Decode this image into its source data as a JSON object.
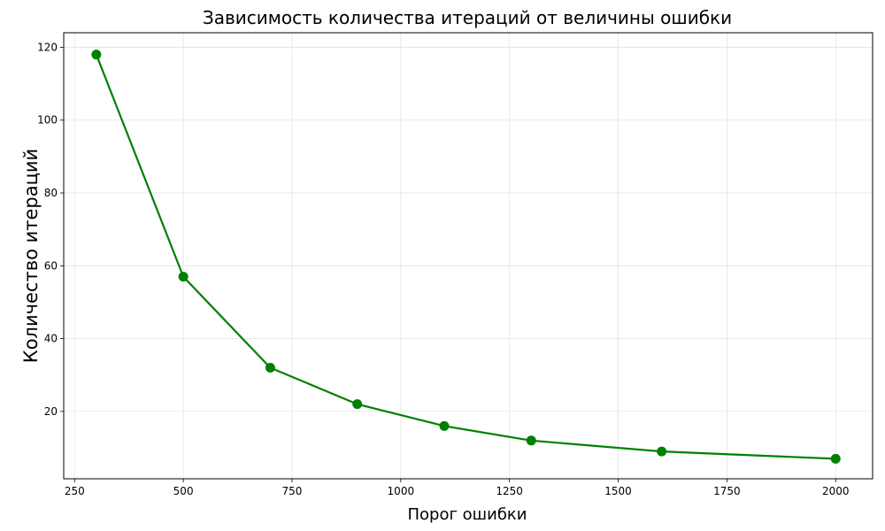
{
  "chart_data": {
    "type": "line",
    "title": "Зависимость количества итераций от величины ошибки",
    "xlabel": "Порог ошибки",
    "ylabel": "Количество итераций",
    "x": [
      300,
      500,
      700,
      900,
      1100,
      1300,
      1600,
      2000
    ],
    "series": [
      {
        "values": [
          118,
          57,
          32,
          22,
          16,
          12,
          9,
          7
        ],
        "color": "#008000",
        "marker": "circle"
      }
    ],
    "xlim": [
      225,
      2085
    ],
    "ylim": [
      1.5,
      124
    ],
    "xticks": [
      250,
      500,
      750,
      1000,
      1250,
      1500,
      1750,
      2000
    ],
    "yticks": [
      20,
      40,
      60,
      80,
      100,
      120
    ],
    "xtick_labels": [
      "250",
      "500",
      "750",
      "1000",
      "1250",
      "1500",
      "1750",
      "2000"
    ],
    "ytick_labels": [
      "20",
      "40",
      "60",
      "80",
      "100",
      "120"
    ],
    "grid": true,
    "legend": false
  }
}
